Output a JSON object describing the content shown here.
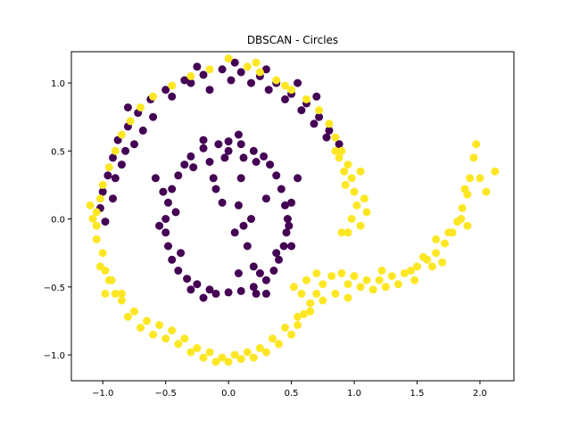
{
  "chart_data": {
    "type": "scatter",
    "title": "DBSCAN - Circles",
    "xlabel": "",
    "ylabel": "",
    "xlim": [
      -1.25,
      2.27
    ],
    "ylim": [
      -1.19,
      1.23
    ],
    "xticks": [
      -1.0,
      -0.5,
      0.0,
      0.5,
      1.0,
      1.5,
      2.0
    ],
    "xtick_labels": [
      "−1.0",
      "−0.5",
      "0.0",
      "0.5",
      "1.0",
      "1.5",
      "2.0"
    ],
    "yticks": [
      -1.0,
      -0.5,
      0.0,
      0.5,
      1.0
    ],
    "ytick_labels": [
      "−1.0",
      "−0.5",
      "0.0",
      "0.5",
      "1.0"
    ],
    "grid": false,
    "colors": {
      "cluster_0": "#440154",
      "cluster_1": "#fde725",
      "axes": "#000000"
    },
    "series": [
      {
        "color_key": "cluster_0",
        "points": [
          [
            -0.08,
            0.55
          ],
          [
            0.0,
            0.57
          ],
          [
            0.1,
            0.55
          ],
          [
            -0.2,
            0.52
          ],
          [
            0.2,
            0.5
          ],
          [
            -0.3,
            0.46
          ],
          [
            0.28,
            0.46
          ],
          [
            -0.35,
            0.4
          ],
          [
            0.33,
            0.4
          ],
          [
            -0.4,
            0.32
          ],
          [
            0.38,
            0.32
          ],
          [
            -0.45,
            0.22
          ],
          [
            0.42,
            0.22
          ],
          [
            -0.48,
            0.12
          ],
          [
            0.45,
            0.1
          ],
          [
            -0.5,
            0.0
          ],
          [
            0.47,
            0.0
          ],
          [
            -0.5,
            -0.1
          ],
          [
            0.46,
            -0.1
          ],
          [
            -0.48,
            -0.2
          ],
          [
            0.44,
            -0.2
          ],
          [
            -0.45,
            -0.3
          ],
          [
            0.4,
            -0.3
          ],
          [
            -0.4,
            -0.38
          ],
          [
            0.36,
            -0.38
          ],
          [
            -0.33,
            -0.44
          ],
          [
            0.3,
            -0.45
          ],
          [
            -0.25,
            -0.48
          ],
          [
            0.2,
            -0.5
          ],
          [
            -0.15,
            -0.52
          ],
          [
            0.1,
            -0.53
          ],
          [
            0.0,
            -0.54
          ],
          [
            -0.1,
            -0.55
          ],
          [
            -0.2,
            0.58
          ],
          [
            0.08,
            0.62
          ],
          [
            -0.28,
            0.38
          ],
          [
            0.22,
            0.42
          ],
          [
            -0.42,
            0.05
          ],
          [
            0.48,
            -0.05
          ],
          [
            -0.38,
            -0.25
          ],
          [
            0.38,
            -0.25
          ],
          [
            -0.12,
            0.3
          ],
          [
            0.1,
            0.3
          ],
          [
            -0.05,
            0.12
          ],
          [
            0.08,
            0.1
          ],
          [
            0.12,
            -0.05
          ],
          [
            0.15,
            -0.2
          ],
          [
            0.2,
            -0.35
          ],
          [
            0.08,
            -0.4
          ],
          [
            -0.03,
            0.45
          ],
          [
            0.18,
            0.0
          ],
          [
            0.05,
            -0.1
          ],
          [
            -0.1,
            0.22
          ],
          [
            0.25,
            -0.4
          ],
          [
            0.3,
            0.15
          ],
          [
            -0.55,
            -0.05
          ],
          [
            0.5,
            0.12
          ],
          [
            -0.52,
            0.2
          ],
          [
            -0.2,
            -0.58
          ],
          [
            0.22,
            -0.55
          ],
          [
            0.0,
            0.5
          ],
          [
            -0.15,
            0.42
          ],
          [
            0.12,
            0.45
          ],
          [
            0.3,
            -0.55
          ],
          [
            -0.3,
            -0.52
          ],
          [
            0.5,
            -0.2
          ],
          [
            -0.58,
            0.3
          ],
          [
            0.55,
            0.3
          ],
          [
            -0.5,
            0.95
          ],
          [
            -0.35,
            1.02
          ],
          [
            -0.2,
            1.06
          ],
          [
            -0.05,
            1.1
          ],
          [
            0.1,
            1.08
          ],
          [
            0.25,
            1.05
          ],
          [
            0.38,
            1.0
          ],
          [
            0.5,
            0.92
          ],
          [
            0.62,
            0.85
          ],
          [
            0.72,
            0.75
          ],
          [
            0.8,
            0.65
          ],
          [
            0.88,
            0.55
          ],
          [
            -0.62,
            0.88
          ],
          [
            -0.72,
            0.78
          ],
          [
            -0.8,
            0.68
          ],
          [
            -0.88,
            0.58
          ],
          [
            -0.92,
            0.45
          ],
          [
            -0.96,
            0.32
          ],
          [
            -1.0,
            0.2
          ],
          [
            -1.02,
            0.08
          ],
          [
            -0.98,
            -0.02
          ],
          [
            -0.85,
            0.4
          ],
          [
            -0.75,
            0.55
          ],
          [
            -0.6,
            0.75
          ],
          [
            -0.45,
            0.9
          ],
          [
            -0.3,
            1.0
          ],
          [
            -0.15,
            0.95
          ],
          [
            0.02,
            1.02
          ],
          [
            0.18,
            1.0
          ],
          [
            0.32,
            0.95
          ],
          [
            0.45,
            0.88
          ],
          [
            0.58,
            0.8
          ],
          [
            0.68,
            0.7
          ],
          [
            0.78,
            0.6
          ],
          [
            -0.68,
            0.65
          ],
          [
            -0.82,
            0.5
          ],
          [
            -0.9,
            0.3
          ],
          [
            -0.92,
            0.15
          ],
          [
            -0.8,
            0.82
          ],
          [
            0.3,
            1.1
          ],
          [
            0.05,
            1.15
          ],
          [
            -0.25,
            1.12
          ],
          [
            0.55,
            1.0
          ],
          [
            0.7,
            0.9
          ]
        ]
      },
      {
        "color_key": "cluster_1",
        "points": [
          [
            -0.3,
            1.05
          ],
          [
            -0.45,
            0.98
          ],
          [
            -0.6,
            0.9
          ],
          [
            -0.7,
            0.82
          ],
          [
            -0.78,
            0.72
          ],
          [
            -0.85,
            0.62
          ],
          [
            -0.9,
            0.5
          ],
          [
            -0.95,
            0.38
          ],
          [
            -1.0,
            0.25
          ],
          [
            -1.02,
            0.15
          ],
          [
            -1.05,
            0.05
          ],
          [
            -1.05,
            -0.05
          ],
          [
            -1.05,
            -0.15
          ],
          [
            -1.0,
            -0.25
          ],
          [
            -0.98,
            -0.38
          ],
          [
            -0.95,
            -0.45
          ],
          [
            -0.9,
            -0.55
          ],
          [
            -0.85,
            -0.6
          ],
          [
            -0.8,
            -0.72
          ],
          [
            -0.7,
            -0.8
          ],
          [
            -0.6,
            -0.85
          ],
          [
            -0.5,
            -0.88
          ],
          [
            -0.4,
            -0.92
          ],
          [
            -0.3,
            -0.98
          ],
          [
            -0.2,
            -1.02
          ],
          [
            -0.1,
            -1.05
          ],
          [
            0.0,
            -1.05
          ],
          [
            0.1,
            -1.03
          ],
          [
            0.2,
            -1.02
          ],
          [
            0.3,
            -0.98
          ],
          [
            0.4,
            -0.92
          ],
          [
            0.5,
            -0.85
          ],
          [
            0.55,
            -0.78
          ],
          [
            0.6,
            -0.7
          ],
          [
            0.65,
            -0.62
          ],
          [
            0.7,
            -0.55
          ],
          [
            0.75,
            -0.48
          ],
          [
            0.82,
            -0.42
          ],
          [
            0.9,
            -0.4
          ],
          [
            1.0,
            -0.42
          ],
          [
            1.1,
            -0.45
          ],
          [
            1.2,
            -0.45
          ],
          [
            1.3,
            -0.42
          ],
          [
            1.4,
            -0.4
          ],
          [
            1.5,
            -0.35
          ],
          [
            1.58,
            -0.3
          ],
          [
            1.65,
            -0.25
          ],
          [
            1.72,
            -0.18
          ],
          [
            1.78,
            -0.1
          ],
          [
            1.82,
            -0.02
          ],
          [
            1.86,
            0.08
          ],
          [
            1.9,
            0.18
          ],
          [
            1.92,
            0.3
          ],
          [
            1.95,
            0.45
          ],
          [
            1.97,
            0.55
          ],
          [
            2.0,
            0.3
          ],
          [
            2.05,
            0.2
          ],
          [
            2.12,
            0.35
          ],
          [
            1.88,
            0.22
          ],
          [
            1.85,
            0.0
          ],
          [
            1.75,
            -0.1
          ],
          [
            1.65,
            -0.15
          ],
          [
            1.55,
            -0.28
          ],
          [
            1.45,
            -0.38
          ],
          [
            1.35,
            -0.48
          ],
          [
            1.25,
            -0.5
          ],
          [
            1.15,
            -0.52
          ],
          [
            1.05,
            -0.5
          ],
          [
            0.95,
            -0.48
          ],
          [
            0.85,
            -0.55
          ],
          [
            0.75,
            -0.6
          ],
          [
            0.65,
            -0.68
          ],
          [
            0.55,
            -0.72
          ],
          [
            0.45,
            -0.8
          ],
          [
            0.35,
            -0.88
          ],
          [
            0.25,
            -0.95
          ],
          [
            0.15,
            -0.98
          ],
          [
            0.05,
            -1.0
          ],
          [
            -0.05,
            -1.02
          ],
          [
            -0.15,
            -0.98
          ],
          [
            -0.25,
            -0.95
          ],
          [
            -0.35,
            -0.88
          ],
          [
            -0.45,
            -0.82
          ],
          [
            -0.55,
            -0.78
          ],
          [
            -0.65,
            -0.75
          ],
          [
            -0.75,
            -0.68
          ],
          [
            -0.85,
            -0.55
          ],
          [
            -0.93,
            -0.45
          ],
          [
            -1.02,
            -0.35
          ],
          [
            -1.08,
            0.0
          ],
          [
            0.9,
            0.5
          ],
          [
            0.95,
            0.4
          ],
          [
            0.98,
            0.3
          ],
          [
            1.0,
            0.2
          ],
          [
            1.02,
            0.1
          ],
          [
            0.98,
            0.0
          ],
          [
            0.95,
            -0.1
          ],
          [
            0.92,
            0.35
          ],
          [
            0.88,
            0.45
          ],
          [
            1.05,
            0.35
          ],
          [
            1.08,
            0.15
          ],
          [
            1.05,
            -0.05
          ],
          [
            0.85,
            0.6
          ],
          [
            0.8,
            0.7
          ],
          [
            0.72,
            0.8
          ],
          [
            0.62,
            0.88
          ],
          [
            0.5,
            0.95
          ],
          [
            0.38,
            1.02
          ],
          [
            0.25,
            1.08
          ],
          [
            0.15,
            1.12
          ],
          [
            0.0,
            1.18
          ],
          [
            -0.15,
            1.1
          ],
          [
            0.22,
            1.15
          ],
          [
            0.45,
            0.98
          ],
          [
            0.85,
            0.5
          ],
          [
            0.93,
            0.25
          ],
          [
            1.1,
            0.05
          ],
          [
            0.9,
            -0.1
          ],
          [
            -1.1,
            0.1
          ],
          [
            -0.98,
            -0.55
          ],
          [
            0.62,
            -0.45
          ],
          [
            0.7,
            -0.4
          ],
          [
            0.52,
            -0.5
          ],
          [
            0.58,
            -0.55
          ],
          [
            0.95,
            -0.58
          ],
          [
            1.22,
            -0.38
          ],
          [
            1.48,
            -0.45
          ],
          [
            1.62,
            -0.35
          ],
          [
            1.7,
            -0.32
          ],
          [
            1.9,
            -0.05
          ]
        ]
      }
    ]
  }
}
